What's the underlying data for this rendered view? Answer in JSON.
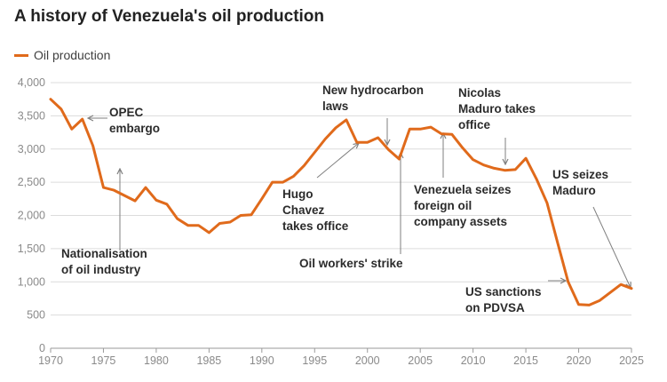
{
  "title": "A history of Venezuela's oil production",
  "legend": {
    "label": "Oil production",
    "color": "#e06a1b"
  },
  "colors": {
    "line": "#e06a1b",
    "grid": "#dcdcdc",
    "arrow": "#7f7f7f"
  },
  "chart_data": {
    "type": "line",
    "title": "A history of Venezuela's oil production",
    "xlabel": "",
    "ylabel": "",
    "xlim": [
      1970,
      2025
    ],
    "ylim": [
      0,
      4000
    ],
    "xticks": [
      1970,
      1975,
      1980,
      1985,
      1990,
      1995,
      2000,
      2005,
      2010,
      2015,
      2020,
      2025
    ],
    "xtick_labels": [
      "1970",
      "1975",
      "1980",
      "1985",
      "1990",
      "1995",
      "2000",
      "2005",
      "2010",
      "2015",
      "2020",
      "2025"
    ],
    "yticks": [
      0,
      500,
      1000,
      1500,
      2000,
      2500,
      3000,
      3500,
      4000
    ],
    "ytick_labels": [
      "0",
      "500",
      "1,000",
      "1,500",
      "2,000",
      "2,500",
      "3,000",
      "3,500",
      "4,000"
    ],
    "series": [
      {
        "name": "Oil production",
        "x": [
          1970,
          1971,
          1972,
          1973,
          1974,
          1975,
          1976,
          1977,
          1978,
          1979,
          1980,
          1981,
          1982,
          1983,
          1984,
          1985,
          1986,
          1987,
          1988,
          1989,
          1990,
          1991,
          1992,
          1993,
          1994,
          1995,
          1996,
          1997,
          1998,
          1999,
          2000,
          2001,
          2002,
          2003,
          2004,
          2005,
          2006,
          2007,
          2008,
          2009,
          2010,
          2011,
          2012,
          2013,
          2014,
          2015,
          2016,
          2017,
          2018,
          2019,
          2020,
          2021,
          2022,
          2023,
          2024,
          2025
        ],
        "values": [
          3750,
          3600,
          3300,
          3450,
          3050,
          2420,
          2380,
          2300,
          2220,
          2420,
          2230,
          2170,
          1950,
          1850,
          1850,
          1740,
          1880,
          1900,
          2000,
          2010,
          2250,
          2500,
          2500,
          2590,
          2750,
          2950,
          3150,
          3320,
          3440,
          3100,
          3100,
          3170,
          2990,
          2850,
          3300,
          3300,
          3330,
          3230,
          3220,
          3020,
          2840,
          2760,
          2710,
          2680,
          2690,
          2860,
          2550,
          2190,
          1590,
          1000,
          660,
          650,
          720,
          840,
          960,
          900
        ]
      }
    ],
    "annotations": [
      {
        "lines": [
          "OPEC",
          "embargo"
        ],
        "year": 1973
      },
      {
        "lines": [
          "Nationalisation",
          "of oil industry"
        ],
        "year": 1976
      },
      {
        "lines": [
          "Hugo",
          "Chavez",
          "takes office"
        ],
        "year": 1999
      },
      {
        "lines": [
          "New hydrocarbon",
          "laws"
        ],
        "year": 2002
      },
      {
        "lines": [
          "Oil workers' strike"
        ],
        "year": 2003
      },
      {
        "lines": [
          "Venezuela seizes",
          "foreign oil",
          "company assets"
        ],
        "year": 2007
      },
      {
        "lines": [
          "Nicolas",
          "Maduro takes",
          "office"
        ],
        "year": 2013
      },
      {
        "lines": [
          "US sanctions",
          "on PDVSA"
        ],
        "year": 2019
      },
      {
        "lines": [
          "US seizes",
          "Maduro"
        ],
        "year": 2025
      }
    ]
  }
}
